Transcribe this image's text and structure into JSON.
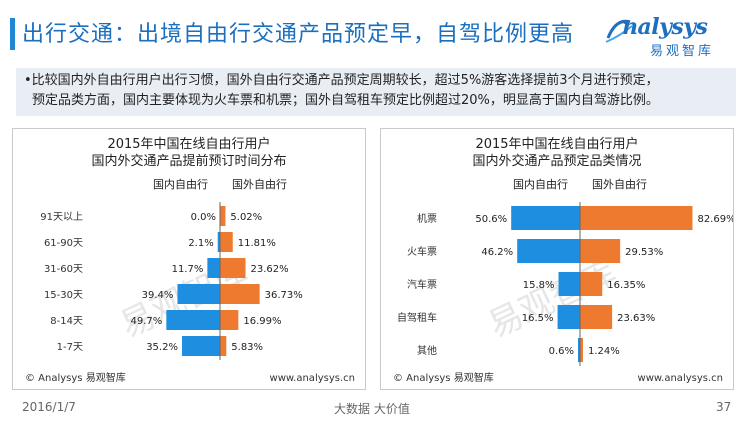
{
  "header": {
    "title": "出行交通：出境自由行交通产品预定早，自驾比例更高",
    "logo_text": "nalysys",
    "logo_cn": "易观智库"
  },
  "description": {
    "line1": "•比较国内外自由行用户出行习惯，国外自由行交通产品预定周期较长，超过5%游客选择提前3个月进行预定，",
    "line2": "预定品类方面，国内主要体现为火车票和机票；国外自驾租车预定比例超过20%，明显高于国内自驾游比例。"
  },
  "colors": {
    "domestic": "#1e8fe0",
    "foreign": "#ee7a30",
    "title": "#1a6fc0"
  },
  "chart_data": [
    {
      "type": "bar",
      "title_line1": "2015年中国在线自由行用户",
      "title_line2": "国内外交通产品提前预订时间分布",
      "legend_left": "国内自由行",
      "legend_right": "国外自由行",
      "categories": [
        "91天以上",
        "61-90天",
        "31-60天",
        "15-30天",
        "8-14天",
        "1-7天"
      ],
      "series": [
        {
          "name": "国内自由行",
          "values": [
            0.0,
            2.1,
            11.7,
            39.4,
            49.7,
            35.2
          ],
          "labels": [
            "0.0%",
            "2.1%",
            "11.7%",
            "39.4%",
            "49.7%",
            "35.2%"
          ]
        },
        {
          "name": "国外自由行",
          "values": [
            5.02,
            11.81,
            23.62,
            36.73,
            16.99,
            5.83
          ],
          "labels": [
            "5.02%",
            "11.81%",
            "23.62%",
            "36.73%",
            "16.99%",
            "5.83%"
          ]
        }
      ],
      "max": 82.69,
      "copyright": "© Analysys 易观智库",
      "website": "www.analysys.cn"
    },
    {
      "type": "bar",
      "title_line1": "2015年中国在线自由行用户",
      "title_line2": "国内外交通产品预定品类情况",
      "legend_left": "国内自由行",
      "legend_right": "国外自由行",
      "categories": [
        "机票",
        "火车票",
        "汽车票",
        "自驾租车",
        "其他"
      ],
      "series": [
        {
          "name": "国内自由行",
          "values": [
            50.6,
            46.2,
            15.8,
            16.5,
            0.6
          ],
          "labels": [
            "50.6%",
            "46.2%",
            "15.8%",
            "16.5%",
            "0.6%"
          ]
        },
        {
          "name": "国外自由行",
          "values": [
            82.69,
            29.53,
            16.35,
            23.63,
            1.24
          ],
          "labels": [
            "82.69%",
            "29.53%",
            "16.35%",
            "23.63%",
            "1.24%"
          ]
        }
      ],
      "max": 82.69,
      "copyright": "© Analysys 易观智库",
      "website": "www.analysys.cn"
    }
  ],
  "footer": {
    "date": "2016/1/7",
    "slogan": "大数据   大价值",
    "page": "37"
  }
}
